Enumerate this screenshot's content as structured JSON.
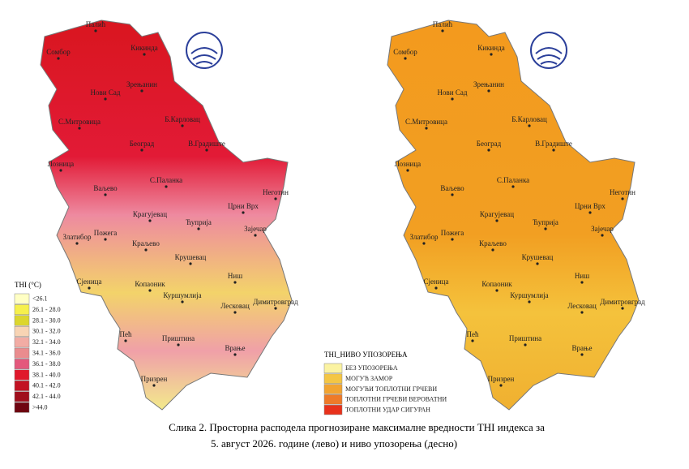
{
  "left_map": {
    "legend": {
      "title": "THI (°C)",
      "items": [
        {
          "label": "<26.1",
          "color": "#ffffc4"
        },
        {
          "label": "26.1 - 28.0",
          "color": "#f6f04c"
        },
        {
          "label": "28.1 - 30.0",
          "color": "#dcd62e"
        },
        {
          "label": "30.1 - 32.0",
          "color": "#f8d4b4"
        },
        {
          "label": "32.1 - 34.0",
          "color": "#f2aca4"
        },
        {
          "label": "34.1 - 36.0",
          "color": "#ea8c8e"
        },
        {
          "label": "36.1 - 38.0",
          "color": "#e4587c"
        },
        {
          "label": "38.1 - 40.0",
          "color": "#e0182c"
        },
        {
          "label": "40.1 - 42.0",
          "color": "#c21222"
        },
        {
          "label": "42.1 - 44.0",
          "color": "#a00e1c"
        },
        {
          "label": ">44.0",
          "color": "#6e0410"
        }
      ]
    }
  },
  "right_map": {
    "legend": {
      "title": "THI_НИВО УПОЗОРЕЊА",
      "items": [
        {
          "label": "БЕЗ УПОЗОРЕЊА",
          "color": "#fbf3a2"
        },
        {
          "label": "МОГУЋ ЗАМОР",
          "color": "#f4c644"
        },
        {
          "label": "МОГУЋИ ТОПЛОТНИ ГРЧЕВИ",
          "color": "#f2a431"
        },
        {
          "label": "ТОПЛОТНИ ГРЧЕВИ ВЕРОВАТНИ",
          "color": "#ee7a29"
        },
        {
          "label": "ТОПЛОТНИ УДАР СИГУРАН",
          "color": "#e8311b"
        }
      ]
    }
  },
  "cities": [
    "Палић",
    "Сомбор",
    "Кикинда",
    "Нови Сад",
    "Зрењанин",
    "С.Митровица",
    "Б.Карловац",
    "Београд",
    "В.Градиште",
    "Лозница",
    "Ваљево",
    "С.Паланка",
    "Неготин",
    "Крагујевац",
    "Ћуприја",
    "Црни Врх",
    "Зајечар",
    "Златибор",
    "Пожега",
    "Краљево",
    "Крушевац",
    "Ниш",
    "Сјеница",
    "Копаоник",
    "Куршумлија",
    "Лесковац",
    "Димитровград",
    "Пећ",
    "Приштина",
    "Врање",
    "Призрен"
  ],
  "caption": {
    "line1": "Слика 2. Просторна расподела прогнозиране максималне вредности THI индекса за",
    "line2": "5. август 2026. године (лево) и ниво упозорења (десно)"
  }
}
